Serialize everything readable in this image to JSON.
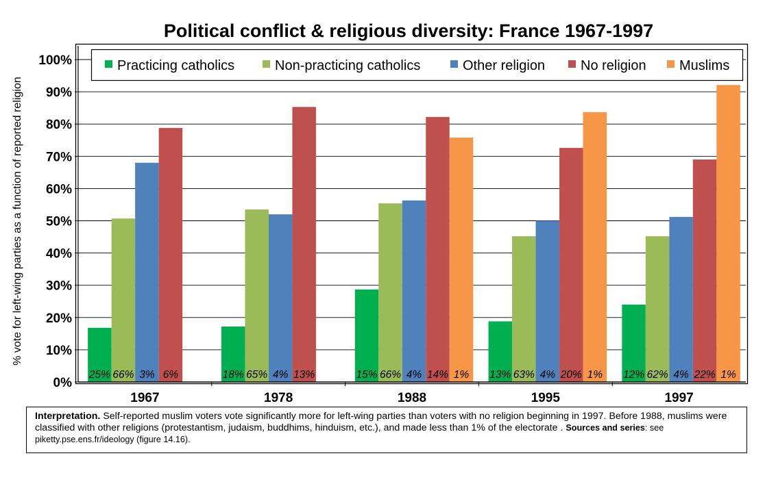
{
  "chart_data": {
    "type": "bar",
    "title": "Political conflict & religious diversity: France 1967-1997",
    "ylabel": "% vote for left-wing parties as a function of reported religion",
    "xlabel": "",
    "ylim": [
      0,
      100
    ],
    "yticks": [
      "0%",
      "10%",
      "20%",
      "30%",
      "40%",
      "50%",
      "60%",
      "70%",
      "80%",
      "90%",
      "100%"
    ],
    "grid": true,
    "legend_position": "top",
    "categories": [
      "1967",
      "1978",
      "1988",
      "1995",
      "1997"
    ],
    "series": [
      {
        "name": "Practicing catholics",
        "color": "#00b050",
        "values": [
          16.8,
          17.2,
          28.7,
          18.8,
          24.0
        ],
        "labels": [
          "25%",
          "18%",
          "15%",
          "13%",
          "12%"
        ]
      },
      {
        "name": "Non-practicing catholics",
        "color": "#9bbb59",
        "values": [
          50.7,
          53.5,
          55.4,
          45.2,
          45.2
        ],
        "labels": [
          "66%",
          "65%",
          "66%",
          "63%",
          "62%"
        ]
      },
      {
        "name": "Other religion",
        "color": "#4f81bd",
        "values": [
          68.0,
          52.0,
          56.3,
          50.0,
          51.2
        ],
        "labels": [
          "3%",
          "4%",
          "4%",
          "4%",
          "4%"
        ]
      },
      {
        "name": "No religion",
        "color": "#c0504d",
        "values": [
          78.8,
          85.3,
          82.2,
          72.6,
          69.0
        ],
        "labels": [
          "6%",
          "13%",
          "14%",
          "20%",
          "22%"
        ]
      },
      {
        "name": "Muslims",
        "color": "#f79646",
        "values": [
          null,
          null,
          75.8,
          83.7,
          92.1
        ],
        "labels": [
          null,
          null,
          "1%",
          "1%",
          "1%"
        ]
      }
    ]
  },
  "note": {
    "interp_label": "Interpretation.",
    "interp_text": " Self-reported muslim voters vote significantly more for left-wing parties than voters with no religion beginning in 1997. Before 1988, muslims were classified with other religions (protestantism, judaism, buddhims, hinduism, etc.), and made less than 1% of the electorate . ",
    "sources_label": "Sources and series",
    "sources_text": ": see piketty.pse.ens.fr/ideology (figure 14.16)."
  }
}
